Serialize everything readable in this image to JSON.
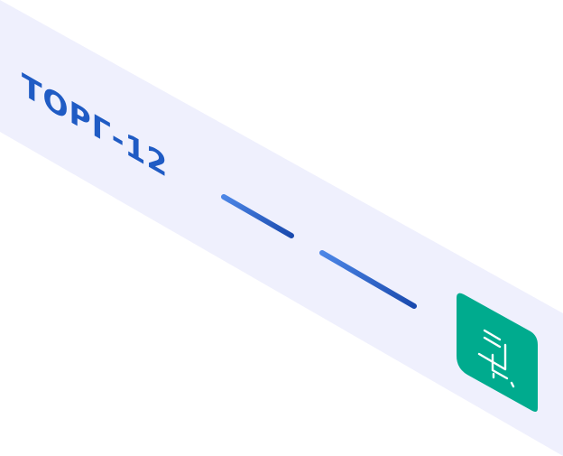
{
  "card": {
    "title": "ТОРГ-12",
    "icon": "document-cart-icon"
  },
  "colors": {
    "strip": "#eff0fd",
    "title": "#1f5bc4",
    "dash_start": "#4c86e6",
    "dash_end": "#1a4aae",
    "icon_bg": "#00ab8e",
    "icon_stroke": "#ffffff"
  }
}
